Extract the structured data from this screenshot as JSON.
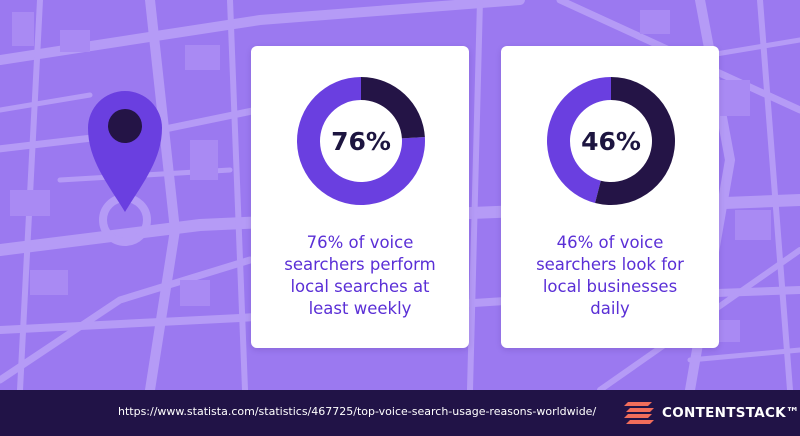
{
  "colors": {
    "background": "#9b79f0",
    "map_lines": "#b59bf6",
    "pin": "#6a3fe0",
    "pin_center": "#241446",
    "accent": "#6a3fe0",
    "dark": "#241446",
    "footer": "#211347",
    "logo_accent": "#f26d5b"
  },
  "icons": {
    "pin": "map-pin-icon",
    "logo_mark": "contentstack-logo-icon"
  },
  "chart_data": [
    {
      "type": "pie",
      "subtype": "donut",
      "center_label": "76%",
      "values": [
        76,
        24
      ],
      "caption": "76% of voice searchers perform local searches at least weekly",
      "colors": [
        "#6a3fe0",
        "#241446"
      ]
    },
    {
      "type": "pie",
      "subtype": "donut",
      "center_label": "46%",
      "values": [
        46,
        54
      ],
      "caption": "46% of voice searchers look for local businesses daily",
      "colors": [
        "#6a3fe0",
        "#241446"
      ]
    }
  ],
  "cards": [
    {
      "lines": [
        "76% of voice",
        "searchers perform",
        "local searches at",
        "least weekly"
      ]
    },
    {
      "lines": [
        "46% of voice",
        "searchers look for",
        "local businesses",
        "daily"
      ]
    }
  ],
  "footer": {
    "source_url": "https://www.statista.com/statistics/467725/top-voice-search-usage-reasons-worldwide/",
    "logo_text": "CONTENTSTACK™"
  }
}
